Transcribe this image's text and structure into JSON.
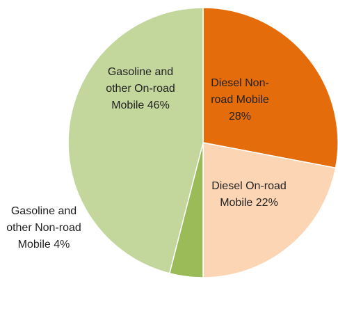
{
  "chart_data": {
    "type": "pie",
    "categories": [
      "Diesel Non-road Mobile",
      "Diesel On-road Mobile",
      "Gasoline and other Non-road Mobile",
      "Gasoline and other On-road Mobile"
    ],
    "values": [
      28,
      22,
      4,
      46
    ],
    "value_labels": [
      "28%",
      "22%",
      "4%",
      "46%"
    ],
    "colors": [
      "#e46c0a",
      "#fcd5b5",
      "#9bbb59",
      "#c3d69b"
    ]
  }
}
